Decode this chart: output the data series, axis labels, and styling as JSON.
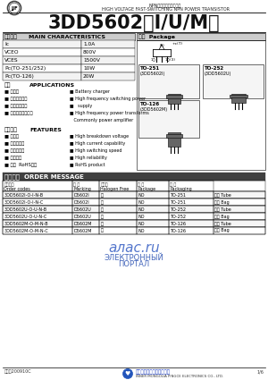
{
  "bg_color": "#ffffff",
  "title_main": "3DD5602（I/U/M）",
  "title_sub_cn": "NPN型高压快开关晶体管",
  "title_sub_en": "HIGH VOLTAGE FAST-SWITCHING NPN POWER TRANSISTOR",
  "section_main_chars_cn": "主要参数",
  "section_main_chars_en": "MAIN CHARACTERISTICS",
  "main_chars": [
    [
      "Ic",
      "1.0A"
    ],
    [
      "VCEO",
      "800V"
    ],
    [
      "VCES",
      "1500V"
    ],
    [
      "Pc(TO-251/252)",
      "10W"
    ],
    [
      "Pc(TO-126)",
      "20W"
    ]
  ],
  "section_package": "封装  Package",
  "section_applications_cn": "用途",
  "section_applications_en": "APPLICATIONS",
  "applications_cn": [
    "充电器",
    "高频开关电源",
    "高频功率变换",
    "一般功率放大电路"
  ],
  "applications_en": [
    "Battery charger",
    "High frequency switching power",
    "  supply",
    "High frequency power transforms",
    "Commonly power amplifier"
  ],
  "applications_pairs": [
    [
      "充电器",
      "Battery charger"
    ],
    [
      "高频开关电源",
      "High frequency switching power"
    ],
    [
      "高频功率变换",
      "  supply"
    ],
    [
      "一般功率放大电路",
      "High frequency power transforms"
    ],
    [
      "",
      "Commonly power amplifier"
    ]
  ],
  "section_features_cn": "产品特性",
  "section_features_en": "FEATURES",
  "features_pairs": [
    [
      "高耐压",
      "High breakdown voltage"
    ],
    [
      "高电流容量",
      "High current capability"
    ],
    [
      "高开关速度",
      "High switching speed"
    ],
    [
      "高可靠性",
      "High reliability"
    ],
    [
      "环保  RoHS产品",
      "RoHS product"
    ]
  ],
  "section_order_cn": "订货信息",
  "section_order_en": "ORDER MESSAGE",
  "order_headers_cn": [
    "订货型号",
    "标 记",
    "无卐奇",
    "封 装",
    "包 装"
  ],
  "order_headers_en": [
    "Order codes",
    "Marking",
    "Halogen Free",
    "Package",
    "Packaging"
  ],
  "order_rows": [
    [
      "3DD5602I-O-I-N-B",
      "D5602I",
      "无",
      "NO",
      "TO-251",
      "管装 Tube"
    ],
    [
      "3DD5602I-O-I-N-C",
      "D5602I",
      "无",
      "NO",
      "TO-251",
      "袋装 Bag"
    ],
    [
      "3DD5602U-O-U-N-B",
      "D5602U",
      "无",
      "NO",
      "TO-252",
      "管装 Tube"
    ],
    [
      "3DD5602U-O-U-N-C",
      "D5602U",
      "无",
      "NO",
      "TO-252",
      "袋装 Bag"
    ],
    [
      "3DD5602M-O-M-N-B",
      "D5602M",
      "无",
      "NO",
      "TO-126",
      "管装 Tube"
    ],
    [
      "3DD5602M-O-M-N-C",
      "D5602M",
      "无",
      "NO",
      "TO-126",
      "袋装 Bag"
    ]
  ],
  "footer_date": "日期：200910C",
  "footer_page": "1/6",
  "footer_company_cn": "内蒙平测电子股份有限公司",
  "footer_company_en": "INNER MONGOLIA PINGCE ELECTRONICS CO., LTD.",
  "watermark_text1": "алас.ru",
  "watermark_text2": "ЭЛЕКТРОННЫЙ",
  "watermark_text3": "ПОРТАЛ"
}
